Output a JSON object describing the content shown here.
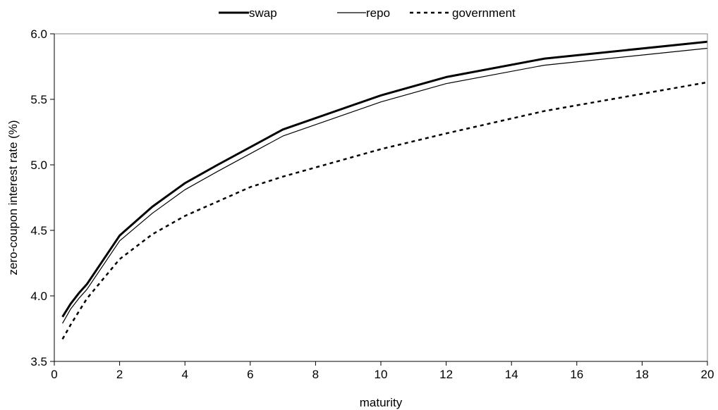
{
  "chart_data": {
    "type": "line",
    "title": "",
    "xlabel": "maturity",
    "ylabel": "zero-coupon interest rate (%)",
    "xlim": [
      0,
      20
    ],
    "ylim": [
      3.5,
      6.0
    ],
    "xticks": [
      0,
      2,
      4,
      6,
      8,
      10,
      12,
      14,
      16,
      18,
      20
    ],
    "yticks": [
      3.5,
      4.0,
      4.5,
      5.0,
      5.5,
      6.0
    ],
    "xtick_labels": [
      "0",
      "2",
      "4",
      "6",
      "8",
      "10",
      "12",
      "14",
      "16",
      "18",
      "20"
    ],
    "ytick_labels": [
      "3.5",
      "4.0",
      "4.5",
      "5.0",
      "5.5",
      "6.0"
    ],
    "grid": false,
    "legend_position": "top-center",
    "series": [
      {
        "name": "swap",
        "style": "solid-thick",
        "color": "#000000",
        "x": [
          0.25,
          0.5,
          0.75,
          1,
          2,
          3,
          4,
          5,
          7,
          10,
          12,
          15,
          20
        ],
        "y": [
          3.84,
          3.94,
          4.02,
          4.09,
          4.46,
          4.68,
          4.86,
          5.0,
          5.27,
          5.53,
          5.67,
          5.81,
          5.94
        ]
      },
      {
        "name": "repo",
        "style": "solid-thin",
        "color": "#000000",
        "x": [
          0.25,
          0.5,
          0.75,
          1,
          2,
          3,
          4,
          5,
          7,
          10,
          12,
          15,
          20
        ],
        "y": [
          3.79,
          3.9,
          3.98,
          4.05,
          4.42,
          4.63,
          4.81,
          4.95,
          5.22,
          5.48,
          5.62,
          5.76,
          5.89
        ]
      },
      {
        "name": "government",
        "style": "dashed",
        "color": "#000000",
        "x": [
          0.25,
          0.5,
          0.75,
          1,
          2,
          3,
          4,
          5,
          6,
          7,
          8,
          9,
          10,
          12,
          15,
          20
        ],
        "y": [
          3.67,
          3.78,
          3.88,
          3.98,
          4.28,
          4.47,
          4.61,
          4.72,
          4.83,
          4.91,
          4.98,
          5.05,
          5.12,
          5.24,
          5.41,
          5.63
        ]
      }
    ]
  }
}
